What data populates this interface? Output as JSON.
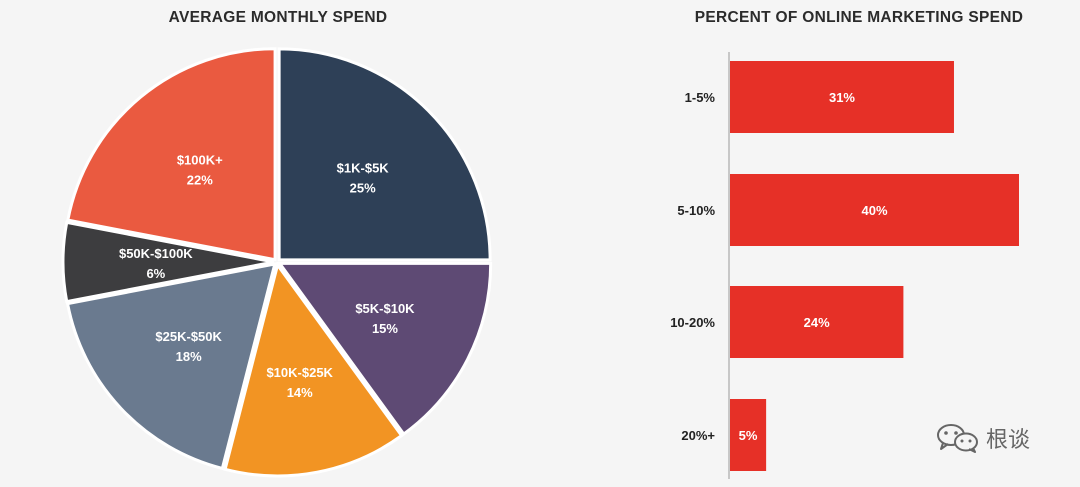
{
  "chart_data": [
    {
      "type": "pie",
      "title": "AVERAGE MONTHLY SPEND",
      "slices": [
        {
          "label": "$1K-$5K",
          "percent_label": "25%",
          "value": 25,
          "color": "#2e4057"
        },
        {
          "label": "$5K-$10K",
          "percent_label": "15%",
          "value": 15,
          "color": "#5e4a74"
        },
        {
          "label": "$10K-$25K",
          "percent_label": "14%",
          "value": 14,
          "color": "#f29423"
        },
        {
          "label": "$25K-$50K",
          "percent_label": "18%",
          "value": 18,
          "color": "#6a7a8f"
        },
        {
          "label": "$50K-$100K",
          "percent_label": "6%",
          "value": 6,
          "color": "#3d3d3f"
        },
        {
          "label": "$100K+",
          "percent_label": "22%",
          "value": 22,
          "color": "#ea5a40"
        }
      ]
    },
    {
      "type": "bar",
      "orientation": "horizontal",
      "title": "PERCENT OF ONLINE MARKETING SPEND",
      "categories": [
        "1-5%",
        "5-10%",
        "10-20%",
        "20%+"
      ],
      "values": [
        31,
        40,
        24,
        5
      ],
      "value_labels": [
        "31%",
        "40%",
        "24%",
        "5%"
      ],
      "xlim": [
        0,
        40
      ],
      "color": "#e63027",
      "axis_color": "#999999"
    }
  ],
  "watermark": {
    "text": "根谈",
    "icon": "wechat-icon"
  }
}
